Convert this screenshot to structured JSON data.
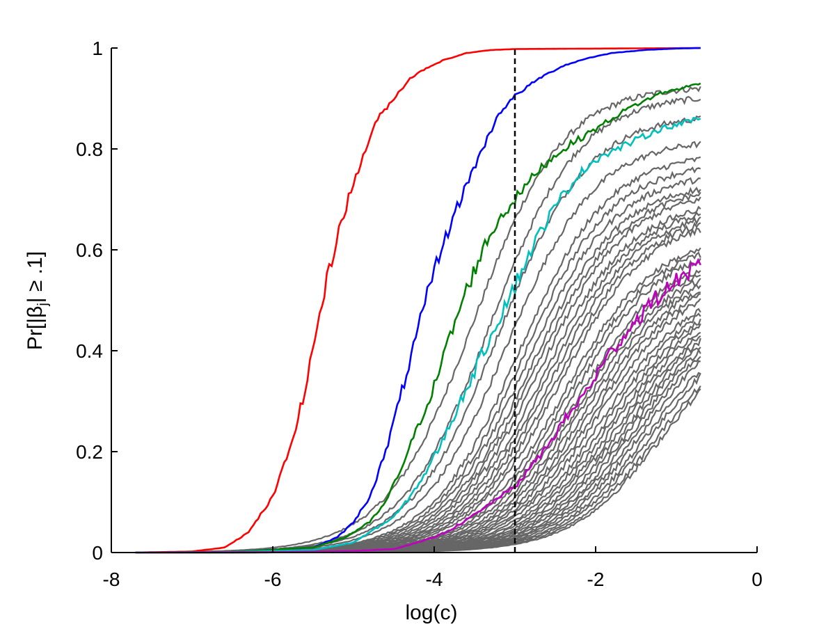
{
  "chart_data": {
    "type": "line",
    "title": "",
    "xlabel": "log(c)",
    "ylabel_parts": {
      "before": "Pr[|β",
      "sub": "j",
      "after": "| ≥ .1]"
    },
    "xlim": [
      -8,
      0
    ],
    "ylim": [
      0,
      1
    ],
    "x_ticks": [
      -8,
      -6,
      -4,
      -2,
      0
    ],
    "x_tick_labels": [
      "-8",
      "-6",
      "-4",
      "-2",
      "0"
    ],
    "y_ticks": [
      0,
      0.2,
      0.4,
      0.6,
      0.8,
      1
    ],
    "y_tick_labels": [
      "0",
      "0.2",
      "0.4",
      "0.6",
      "0.8",
      "1"
    ],
    "grid": false,
    "legend": "none",
    "x_range": [
      -7.7,
      -0.7
    ],
    "reference_line": {
      "x": -3.0,
      "style": "dashed",
      "color": "#000000"
    },
    "highlighted_series": [
      {
        "color": "#ff0000",
        "values": [
          [
            -7.7,
            0
          ],
          [
            -7.0,
            0.002
          ],
          [
            -6.6,
            0.01
          ],
          [
            -6.3,
            0.04
          ],
          [
            -6.0,
            0.11
          ],
          [
            -5.8,
            0.2
          ],
          [
            -5.6,
            0.32
          ],
          [
            -5.45,
            0.45
          ],
          [
            -5.3,
            0.56
          ],
          [
            -5.15,
            0.66
          ],
          [
            -5.0,
            0.73
          ],
          [
            -4.85,
            0.8
          ],
          [
            -4.7,
            0.86
          ],
          [
            -4.5,
            0.9
          ],
          [
            -4.3,
            0.94
          ],
          [
            -4.1,
            0.96
          ],
          [
            -3.9,
            0.975
          ],
          [
            -3.6,
            0.99
          ],
          [
            -3.3,
            0.996
          ],
          [
            -3.0,
            0.998
          ],
          [
            -0.7,
            1.0
          ]
        ]
      },
      {
        "color": "#0000ff",
        "values": [
          [
            -7.7,
            0
          ],
          [
            -6.5,
            0.001
          ],
          [
            -5.5,
            0.01
          ],
          [
            -5.2,
            0.03
          ],
          [
            -5.0,
            0.06
          ],
          [
            -4.8,
            0.11
          ],
          [
            -4.6,
            0.2
          ],
          [
            -4.4,
            0.32
          ],
          [
            -4.2,
            0.44
          ],
          [
            -4.0,
            0.56
          ],
          [
            -3.8,
            0.65
          ],
          [
            -3.6,
            0.73
          ],
          [
            -3.4,
            0.8
          ],
          [
            -3.2,
            0.87
          ],
          [
            -3.0,
            0.905
          ],
          [
            -2.7,
            0.94
          ],
          [
            -2.4,
            0.965
          ],
          [
            -2.1,
            0.98
          ],
          [
            -1.8,
            0.99
          ],
          [
            -1.4,
            0.996
          ],
          [
            -1.0,
            0.999
          ],
          [
            -0.7,
            1.0
          ]
        ]
      },
      {
        "color": "#008000",
        "values": [
          [
            -7.7,
            0
          ],
          [
            -6.5,
            0.001
          ],
          [
            -5.5,
            0.01
          ],
          [
            -5.1,
            0.03
          ],
          [
            -4.8,
            0.06
          ],
          [
            -4.6,
            0.1
          ],
          [
            -4.4,
            0.17
          ],
          [
            -4.2,
            0.25
          ],
          [
            -4.0,
            0.33
          ],
          [
            -3.8,
            0.43
          ],
          [
            -3.6,
            0.52
          ],
          [
            -3.4,
            0.6
          ],
          [
            -3.2,
            0.66
          ],
          [
            -3.0,
            0.7
          ],
          [
            -2.7,
            0.76
          ],
          [
            -2.4,
            0.8
          ],
          [
            -2.0,
            0.84
          ],
          [
            -1.6,
            0.88
          ],
          [
            -1.2,
            0.91
          ],
          [
            -0.7,
            0.93
          ]
        ]
      },
      {
        "color": "#00bfbf",
        "values": [
          [
            -7.7,
            0
          ],
          [
            -6.5,
            0.001
          ],
          [
            -5.5,
            0.005
          ],
          [
            -5.0,
            0.02
          ],
          [
            -4.7,
            0.05
          ],
          [
            -4.5,
            0.07
          ],
          [
            -4.3,
            0.11
          ],
          [
            -4.1,
            0.16
          ],
          [
            -3.9,
            0.22
          ],
          [
            -3.7,
            0.29
          ],
          [
            -3.5,
            0.36
          ],
          [
            -3.3,
            0.43
          ],
          [
            -3.1,
            0.5
          ],
          [
            -3.0,
            0.53
          ],
          [
            -2.8,
            0.6
          ],
          [
            -2.6,
            0.66
          ],
          [
            -2.4,
            0.71
          ],
          [
            -2.2,
            0.75
          ],
          [
            -2.0,
            0.78
          ],
          [
            -1.6,
            0.81
          ],
          [
            -1.2,
            0.84
          ],
          [
            -0.7,
            0.86
          ]
        ]
      },
      {
        "color": "#bf00bf",
        "values": [
          [
            -7.7,
            0
          ],
          [
            -6.0,
            0.001
          ],
          [
            -5.0,
            0.003
          ],
          [
            -4.5,
            0.007
          ],
          [
            -4.2,
            0.02
          ],
          [
            -4.0,
            0.03
          ],
          [
            -3.8,
            0.045
          ],
          [
            -3.6,
            0.065
          ],
          [
            -3.4,
            0.085
          ],
          [
            -3.2,
            0.11
          ],
          [
            -3.0,
            0.13
          ],
          [
            -2.8,
            0.17
          ],
          [
            -2.6,
            0.21
          ],
          [
            -2.4,
            0.26
          ],
          [
            -2.2,
            0.3
          ],
          [
            -2.0,
            0.35
          ],
          [
            -1.8,
            0.4
          ],
          [
            -1.6,
            0.44
          ],
          [
            -1.4,
            0.48
          ],
          [
            -1.2,
            0.51
          ],
          [
            -1.0,
            0.54
          ],
          [
            -0.7,
            0.57
          ]
        ]
      }
    ],
    "background_series": {
      "color": "#666666",
      "count": 40,
      "final_values": [
        0.92,
        0.9,
        0.86,
        0.81,
        0.78,
        0.76,
        0.74,
        0.72,
        0.71,
        0.7,
        0.68,
        0.67,
        0.66,
        0.65,
        0.64,
        0.6,
        0.59,
        0.58,
        0.56,
        0.55,
        0.54,
        0.53,
        0.52,
        0.51,
        0.5,
        0.48,
        0.47,
        0.46,
        0.45,
        0.44,
        0.43,
        0.42,
        0.41,
        0.4,
        0.39,
        0.38,
        0.36,
        0.35,
        0.33,
        0.32
      ],
      "midpoints": [
        -3.5,
        -3.3,
        -3.2,
        -3.1,
        -2.95,
        -2.9,
        -2.85,
        -2.8,
        -2.75,
        -2.7,
        -2.65,
        -2.6,
        -2.55,
        -2.5,
        -2.45,
        -2.4,
        -2.35,
        -2.3,
        -2.25,
        -2.2,
        -2.15,
        -2.1,
        -2.05,
        -2.0,
        -1.95,
        -1.9,
        -1.85,
        -1.8,
        -1.75,
        -1.7,
        -1.65,
        -1.6,
        -1.55,
        -1.5,
        -1.45,
        -1.4,
        -1.35,
        -1.3,
        -1.25,
        -1.2
      ]
    }
  }
}
